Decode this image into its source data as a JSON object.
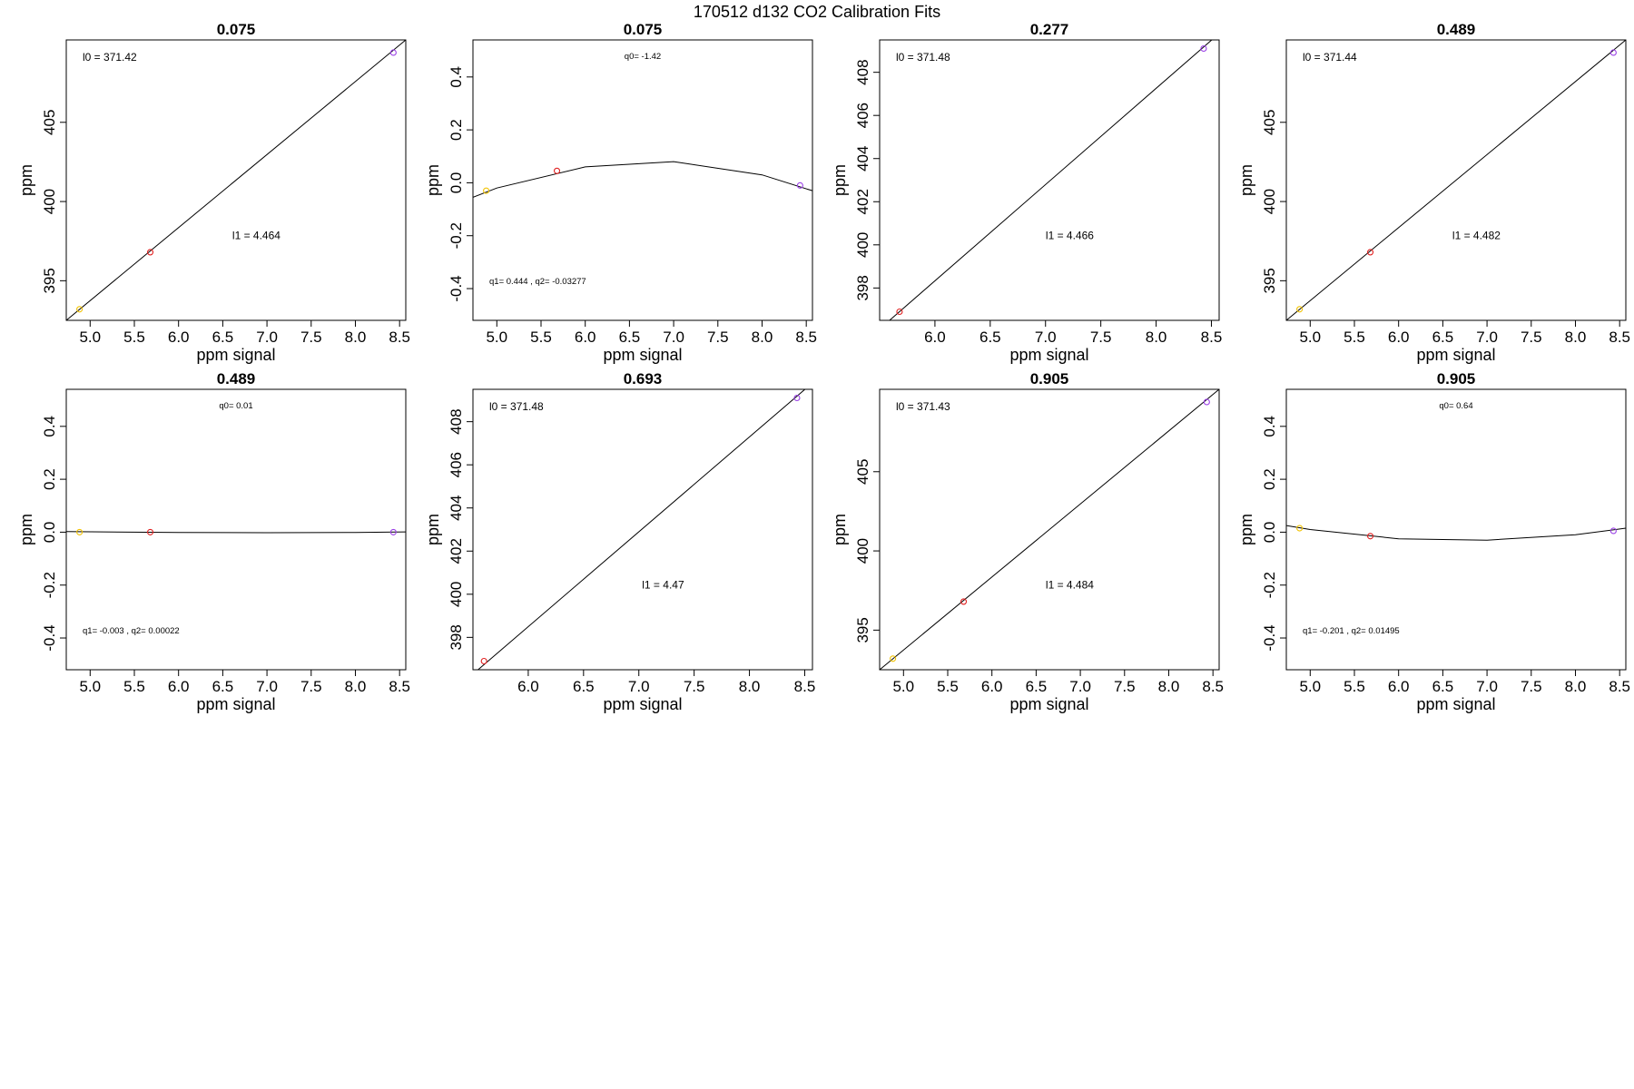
{
  "figure_title": "170512   d132   CO2 Calibration Fits",
  "colors": {
    "yellow": "#f2c200",
    "red": "#e02020",
    "purple": "#9a40e6",
    "line": "#000000"
  },
  "chart_data": [
    {
      "type": "scatter",
      "fit": "linear",
      "title": "0.075",
      "xlabel": "ppm signal",
      "ylabel": "ppm",
      "xlim": [
        4.73,
        8.57
      ],
      "ylim": [
        392.5,
        410.2
      ],
      "xticks": [
        "5.0",
        "5.5",
        "6.0",
        "6.5",
        "7.0",
        "7.5",
        "8.0",
        "8.5"
      ],
      "yticks": [
        "395",
        "400",
        "405"
      ],
      "points": [
        {
          "x": 4.88,
          "y": 393.2,
          "color": "yellow"
        },
        {
          "x": 5.68,
          "y": 396.8,
          "color": "red"
        },
        {
          "x": 8.43,
          "y": 409.4,
          "color": "purple"
        }
      ],
      "line": [
        [
          4.73,
          392.5
        ],
        [
          8.57,
          410.2
        ]
      ],
      "annotations": [
        {
          "text": "l0 =  371.42",
          "position": "top-left"
        },
        {
          "text": "l1 =  4.464",
          "position": "middle-right"
        }
      ]
    },
    {
      "type": "scatter",
      "fit": "quadratic",
      "title": "0.075",
      "xlabel": "ppm signal",
      "ylabel": "ppm",
      "xlim": [
        4.73,
        8.57
      ],
      "ylim": [
        -0.52,
        0.54
      ],
      "xticks": [
        "5.0",
        "5.5",
        "6.0",
        "6.5",
        "7.0",
        "7.5",
        "8.0",
        "8.5"
      ],
      "yticks": [
        "-0.4",
        "-0.2",
        "0.0",
        "0.2",
        "0.4"
      ],
      "points": [
        {
          "x": 4.88,
          "y": -0.03,
          "color": "yellow"
        },
        {
          "x": 5.68,
          "y": 0.045,
          "color": "red"
        },
        {
          "x": 8.43,
          "y": -0.01,
          "color": "purple"
        }
      ],
      "line": [
        [
          4.73,
          -0.055
        ],
        [
          5.0,
          -0.02
        ],
        [
          6.0,
          0.06
        ],
        [
          7.0,
          0.08
        ],
        [
          8.0,
          0.03
        ],
        [
          8.57,
          -0.03
        ]
      ],
      "annotations": [
        {
          "text": "q0= -1.42",
          "position": "top-center"
        },
        {
          "text": "q1= 0.444 , q2= -0.03277",
          "position": "bottom-left"
        }
      ]
    },
    {
      "type": "scatter",
      "fit": "linear",
      "title": "0.277",
      "xlabel": "ppm signal",
      "ylabel": "ppm",
      "xlim": [
        5.5,
        8.57
      ],
      "ylim": [
        396.5,
        409.5
      ],
      "xticks": [
        "6.0",
        "6.5",
        "7.0",
        "7.5",
        "8.0",
        "8.5"
      ],
      "yticks": [
        "398",
        "400",
        "402",
        "404",
        "406",
        "408"
      ],
      "points": [
        {
          "x": 5.68,
          "y": 396.9,
          "color": "red"
        },
        {
          "x": 8.43,
          "y": 409.1,
          "color": "purple"
        }
      ],
      "line": [
        [
          5.5,
          396.1
        ],
        [
          8.57,
          409.8
        ]
      ],
      "annotations": [
        {
          "text": "l0 =  371.48",
          "position": "top-left"
        },
        {
          "text": "l1 =  4.466",
          "position": "middle-right"
        }
      ]
    },
    {
      "type": "scatter",
      "fit": "linear",
      "title": "0.489",
      "xlabel": "ppm signal",
      "ylabel": "ppm",
      "xlim": [
        4.73,
        8.57
      ],
      "ylim": [
        392.5,
        410.2
      ],
      "xticks": [
        "5.0",
        "5.5",
        "6.0",
        "6.5",
        "7.0",
        "7.5",
        "8.0",
        "8.5"
      ],
      "yticks": [
        "395",
        "400",
        "405"
      ],
      "points": [
        {
          "x": 4.88,
          "y": 393.2,
          "color": "yellow"
        },
        {
          "x": 5.68,
          "y": 396.8,
          "color": "red"
        },
        {
          "x": 8.43,
          "y": 409.4,
          "color": "purple"
        }
      ],
      "line": [
        [
          4.73,
          392.5
        ],
        [
          8.57,
          410.2
        ]
      ],
      "annotations": [
        {
          "text": "l0 =  371.44",
          "position": "top-left"
        },
        {
          "text": "l1 =  4.482",
          "position": "middle-right"
        }
      ]
    },
    {
      "type": "scatter",
      "fit": "quadratic",
      "title": "0.489",
      "xlabel": "ppm signal",
      "ylabel": "ppm",
      "xlim": [
        4.73,
        8.57
      ],
      "ylim": [
        -0.52,
        0.54
      ],
      "xticks": [
        "5.0",
        "5.5",
        "6.0",
        "6.5",
        "7.0",
        "7.5",
        "8.0",
        "8.5"
      ],
      "yticks": [
        "-0.4",
        "-0.2",
        "0.0",
        "0.2",
        "0.4"
      ],
      "points": [
        {
          "x": 4.88,
          "y": 0.0,
          "color": "yellow"
        },
        {
          "x": 5.68,
          "y": 0.0,
          "color": "red"
        },
        {
          "x": 8.43,
          "y": 0.0,
          "color": "purple"
        }
      ],
      "line": [
        [
          4.73,
          0.002
        ],
        [
          6.0,
          -0.001
        ],
        [
          7.0,
          -0.002
        ],
        [
          8.0,
          -0.001
        ],
        [
          8.57,
          0.001
        ]
      ],
      "annotations": [
        {
          "text": "q0= 0.01",
          "position": "top-center"
        },
        {
          "text": "q1= -0.003 , q2= 0.00022",
          "position": "bottom-left"
        }
      ]
    },
    {
      "type": "scatter",
      "fit": "linear",
      "title": "0.693",
      "xlabel": "ppm signal",
      "ylabel": "ppm",
      "xlim": [
        5.5,
        8.57
      ],
      "ylim": [
        396.5,
        409.5
      ],
      "xticks": [
        "6.0",
        "6.5",
        "7.0",
        "7.5",
        "8.0",
        "8.5"
      ],
      "yticks": [
        "398",
        "400",
        "402",
        "404",
        "406",
        "408"
      ],
      "points": [
        {
          "x": 5.6,
          "y": 396.9,
          "color": "red"
        },
        {
          "x": 8.43,
          "y": 409.1,
          "color": "purple"
        }
      ],
      "line": [
        [
          5.5,
          396.3
        ],
        [
          8.57,
          409.8
        ]
      ],
      "annotations": [
        {
          "text": "l0 =  371.48",
          "position": "top-left"
        },
        {
          "text": "l1 =  4.47",
          "position": "middle-right"
        }
      ]
    },
    {
      "type": "scatter",
      "fit": "linear",
      "title": "0.905",
      "xlabel": "ppm signal",
      "ylabel": "ppm",
      "xlim": [
        4.73,
        8.57
      ],
      "ylim": [
        392.5,
        410.2
      ],
      "xticks": [
        "5.0",
        "5.5",
        "6.0",
        "6.5",
        "7.0",
        "7.5",
        "8.0",
        "8.5"
      ],
      "yticks": [
        "395",
        "400",
        "405"
      ],
      "points": [
        {
          "x": 4.88,
          "y": 393.2,
          "color": "yellow"
        },
        {
          "x": 5.68,
          "y": 396.8,
          "color": "red"
        },
        {
          "x": 8.43,
          "y": 409.4,
          "color": "purple"
        }
      ],
      "line": [
        [
          4.73,
          392.5
        ],
        [
          8.57,
          410.2
        ]
      ],
      "annotations": [
        {
          "text": "l0 =  371.43",
          "position": "top-left"
        },
        {
          "text": "l1 =  4.484",
          "position": "middle-right"
        }
      ]
    },
    {
      "type": "scatter",
      "fit": "quadratic",
      "title": "0.905",
      "xlabel": "ppm signal",
      "ylabel": "ppm",
      "xlim": [
        4.73,
        8.57
      ],
      "ylim": [
        -0.52,
        0.54
      ],
      "xticks": [
        "5.0",
        "5.5",
        "6.0",
        "6.5",
        "7.0",
        "7.5",
        "8.0",
        "8.5"
      ],
      "yticks": [
        "-0.4",
        "-0.2",
        "0.0",
        "0.2",
        "0.4"
      ],
      "points": [
        {
          "x": 4.88,
          "y": 0.015,
          "color": "yellow"
        },
        {
          "x": 5.68,
          "y": -0.015,
          "color": "red"
        },
        {
          "x": 8.43,
          "y": 0.005,
          "color": "purple"
        }
      ],
      "line": [
        [
          4.73,
          0.025
        ],
        [
          5.0,
          0.01
        ],
        [
          6.0,
          -0.025
        ],
        [
          7.0,
          -0.03
        ],
        [
          8.0,
          -0.01
        ],
        [
          8.57,
          0.015
        ]
      ],
      "annotations": [
        {
          "text": "q0= 0.64",
          "position": "top-center"
        },
        {
          "text": "q1= -0.201 , q2= 0.01495",
          "position": "bottom-left"
        }
      ]
    }
  ]
}
